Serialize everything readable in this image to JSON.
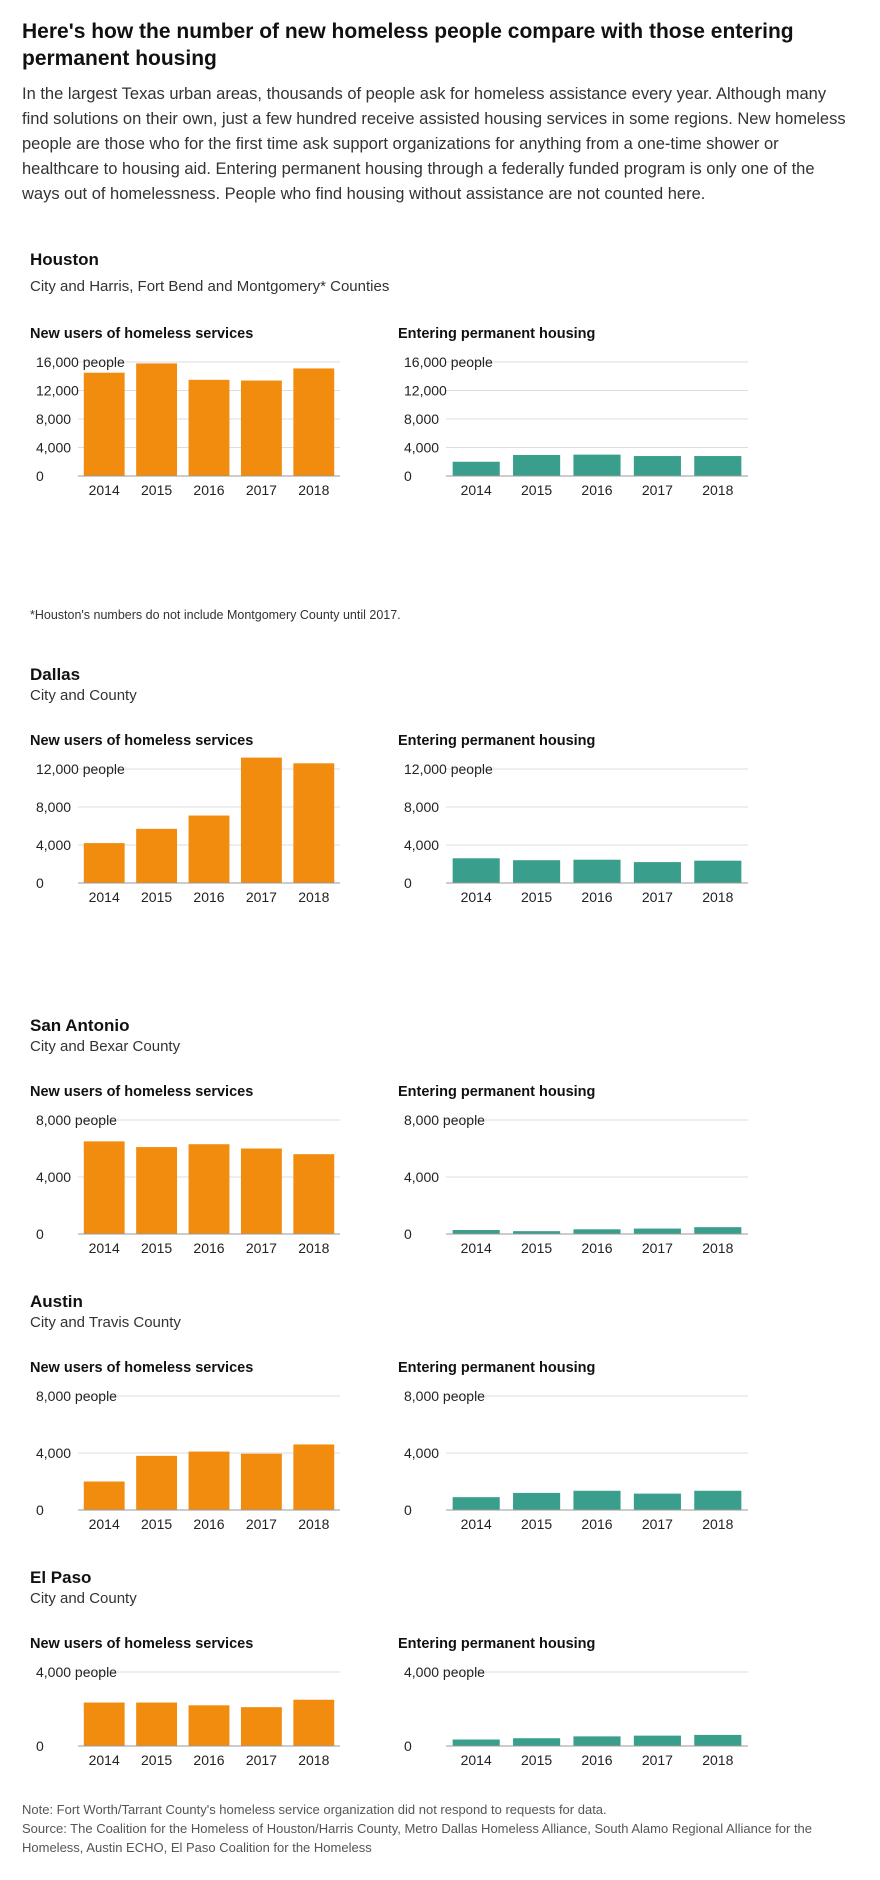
{
  "headline": "Here's how the number of new homeless people compare with those entering permanent housing",
  "intro": "In the largest Texas urban areas, thousands of people ask for homeless assistance every year. Although many find solutions on their own, just a few hundred receive assisted housing services in some regions. New homeless people are those who for the first time ask support organizations for anything from a one-time shower or healthcare to housing aid. Entering permanent housing through a federally funded program is only one of the ways out of homelessness. People who find housing without assistance are not counted here.",
  "colors": {
    "new_users": "#f28c0f",
    "permanent_housing": "#3a9e8c",
    "gridline": "#dddddd",
    "axis": "#999999"
  },
  "regions": [
    {
      "name": "Houston",
      "subtitle": "City and Harris, Fort Bend and Montgomery* Counties",
      "footnote": "*Houston's numbers do not include Montgomery County until 2017."
    },
    {
      "name": "Dallas",
      "subtitle": "City and County",
      "footnote": ""
    },
    {
      "name": "San Antonio",
      "subtitle": "City and Bexar County",
      "footnote": ""
    },
    {
      "name": "Austin",
      "subtitle": "City and Travis County",
      "footnote": ""
    },
    {
      "name": "El Paso",
      "subtitle": "City and County",
      "footnote": ""
    }
  ],
  "chart_data": [
    {
      "region": "Houston",
      "title": "New users of homeless services",
      "type": "bar",
      "categories": [
        "2014",
        "2015",
        "2016",
        "2017",
        "2018"
      ],
      "values": [
        14500,
        15800,
        13500,
        13400,
        15100
      ],
      "ylim": [
        0,
        16000
      ],
      "yticks": [
        0,
        4000,
        8000,
        12000,
        16000
      ],
      "ytick_labels": [
        "0",
        "4,000",
        "8,000",
        "12,000",
        "16,000 people"
      ],
      "color": "#f28c0f"
    },
    {
      "region": "Houston",
      "title": "Entering permanent housing",
      "type": "bar",
      "categories": [
        "2014",
        "2015",
        "2016",
        "2017",
        "2018"
      ],
      "values": [
        2000,
        2950,
        3000,
        2800,
        2800
      ],
      "ylim": [
        0,
        16000
      ],
      "yticks": [
        0,
        4000,
        8000,
        12000,
        16000
      ],
      "ytick_labels": [
        "0",
        "4,000",
        "8,000",
        "12,000",
        "16,000 people"
      ],
      "color": "#3a9e8c"
    },
    {
      "region": "Dallas",
      "title": "New users of homeless services",
      "type": "bar",
      "categories": [
        "2014",
        "2015",
        "2016",
        "2017",
        "2018"
      ],
      "values": [
        4200,
        5700,
        7100,
        13200,
        12600
      ],
      "ylim": [
        0,
        12000
      ],
      "yticks": [
        0,
        4000,
        8000,
        12000
      ],
      "ytick_labels": [
        "0",
        "4,000",
        "8,000",
        "12,000 people"
      ],
      "color": "#f28c0f"
    },
    {
      "region": "Dallas",
      "title": "Entering permanent housing",
      "type": "bar",
      "categories": [
        "2014",
        "2015",
        "2016",
        "2017",
        "2018"
      ],
      "values": [
        2600,
        2400,
        2450,
        2200,
        2350
      ],
      "ylim": [
        0,
        12000
      ],
      "yticks": [
        0,
        4000,
        8000,
        12000
      ],
      "ytick_labels": [
        "0",
        "4,000",
        "8,000",
        "12,000 people"
      ],
      "color": "#3a9e8c"
    },
    {
      "region": "San Antonio",
      "title": "New users of homeless services",
      "type": "bar",
      "categories": [
        "2014",
        "2015",
        "2016",
        "2017",
        "2018"
      ],
      "values": [
        6500,
        6100,
        6300,
        6000,
        5600
      ],
      "ylim": [
        0,
        8000
      ],
      "yticks": [
        0,
        4000,
        8000
      ],
      "ytick_labels": [
        "0",
        "4,000",
        "8,000 people"
      ],
      "color": "#f28c0f"
    },
    {
      "region": "San Antonio",
      "title": "Entering permanent housing",
      "type": "bar",
      "categories": [
        "2014",
        "2015",
        "2016",
        "2017",
        "2018"
      ],
      "values": [
        280,
        200,
        330,
        380,
        480
      ],
      "ylim": [
        0,
        8000
      ],
      "yticks": [
        0,
        4000,
        8000
      ],
      "ytick_labels": [
        "0",
        "4,000",
        "8,000 people"
      ],
      "color": "#3a9e8c"
    },
    {
      "region": "Austin",
      "title": "New users of homeless services",
      "type": "bar",
      "categories": [
        "2014",
        "2015",
        "2016",
        "2017",
        "2018"
      ],
      "values": [
        2000,
        3800,
        4100,
        3950,
        4600
      ],
      "ylim": [
        0,
        8000
      ],
      "yticks": [
        0,
        4000,
        8000
      ],
      "ytick_labels": [
        "0",
        "4,000",
        "8,000 people"
      ],
      "color": "#f28c0f"
    },
    {
      "region": "Austin",
      "title": "Entering permanent housing",
      "type": "bar",
      "categories": [
        "2014",
        "2015",
        "2016",
        "2017",
        "2018"
      ],
      "values": [
        900,
        1200,
        1350,
        1150,
        1350
      ],
      "ylim": [
        0,
        8000
      ],
      "yticks": [
        0,
        4000,
        8000
      ],
      "ytick_labels": [
        "0",
        "4,000",
        "8,000 people"
      ],
      "color": "#3a9e8c"
    },
    {
      "region": "El Paso",
      "title": "New users of homeless services",
      "type": "bar",
      "categories": [
        "2014",
        "2015",
        "2016",
        "2017",
        "2018"
      ],
      "values": [
        2350,
        2350,
        2200,
        2100,
        2500
      ],
      "ylim": [
        0,
        4000
      ],
      "yticks": [
        0,
        4000
      ],
      "ytick_labels": [
        "0",
        "4,000 people"
      ],
      "color": "#f28c0f"
    },
    {
      "region": "El Paso",
      "title": "Entering permanent housing",
      "type": "bar",
      "categories": [
        "2014",
        "2015",
        "2016",
        "2017",
        "2018"
      ],
      "values": [
        350,
        420,
        520,
        560,
        600
      ],
      "ylim": [
        0,
        4000
      ],
      "yticks": [
        0,
        4000
      ],
      "ytick_labels": [
        "0",
        "4,000 people"
      ],
      "color": "#3a9e8c"
    }
  ],
  "note": "Note: Fort Worth/Tarrant County's homeless service organization did not respond to requests for data.",
  "source": "Source: The Coalition for the Homeless of Houston/Harris County, Metro Dallas Homeless Alliance, South Alamo Regional Alliance for the Homeless, Austin ECHO, El Paso Coalition for the Homeless"
}
